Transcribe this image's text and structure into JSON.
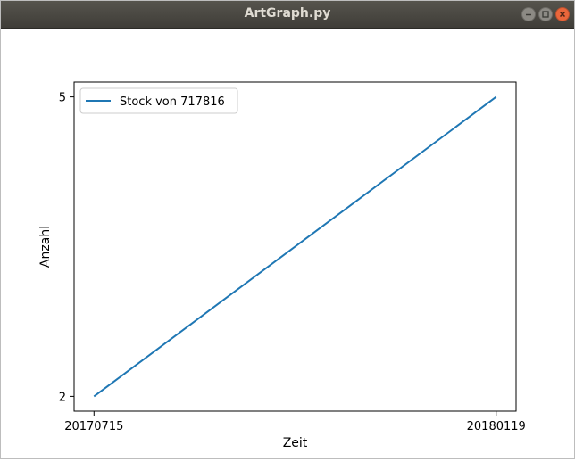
{
  "window": {
    "title": "ArtGraph.py",
    "icons": [
      "minimize-icon",
      "maximize-icon",
      "close-icon"
    ]
  },
  "chart_data": {
    "type": "line",
    "xlabel": "Zeit",
    "ylabel": "Anzahl",
    "x_ticks": [
      "20170715",
      "20180119"
    ],
    "y_ticks": [
      2,
      5
    ],
    "x": [
      "20170715",
      "20180119"
    ],
    "series": [
      {
        "name": "Stock von 717816",
        "values": [
          2,
          5
        ],
        "color": "#1f77b4"
      }
    ],
    "legend": "top-left",
    "grid": false
  }
}
